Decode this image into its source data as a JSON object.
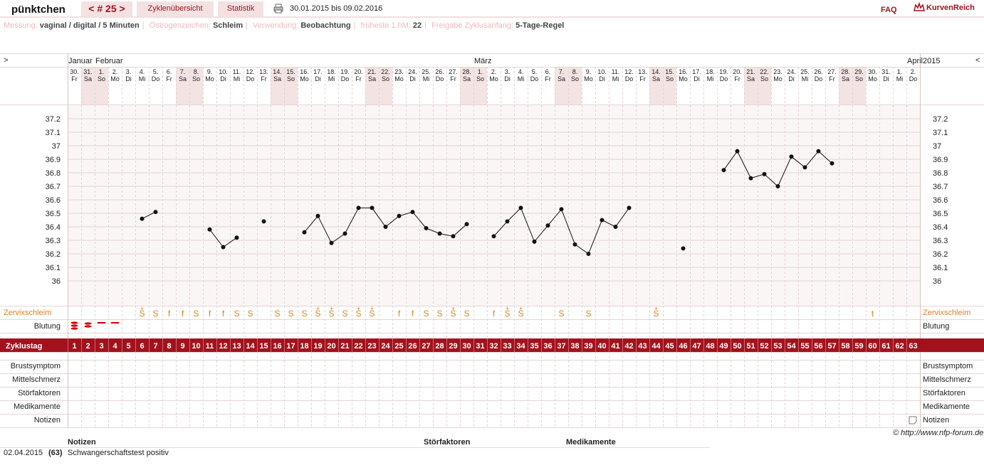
{
  "header": {
    "brand": "pünktchen",
    "cycle": "< # 25 >",
    "tabs": [
      "Zyklenübersicht",
      "Statistik"
    ],
    "date_range": "30.01.2015 bis 09.02.2016",
    "faq": "FAQ",
    "logo": "KurvenReich"
  },
  "settings": [
    {
      "label": "Messung:",
      "value": "vaginal / digital / 5 Minuten"
    },
    {
      "label": "Östrogenzeichen:",
      "value": "Schleim"
    },
    {
      "label": "Verwendung:",
      "value": "Beobachtung"
    },
    {
      "label": "früheste 1.hM:",
      "value": "22"
    },
    {
      "label": "Freigabe Zyklusanfang:",
      "value": "5-Tage-Regel"
    }
  ],
  "nav": {
    "prev": ">",
    "next": "<"
  },
  "colors": {
    "accent": "#a3121c",
    "weekend": "#f3e3e3",
    "mucus": "#e08020",
    "bleeding": "#cc0000",
    "grid": "#e2d2d2",
    "chartbg": "#fbf6f6"
  },
  "row_labels": {
    "zervix": "Zervixschleim",
    "blutung": "Blutung",
    "zyklustag": "Zyklustag",
    "brust": "Brustsymptom",
    "mittel": "Mittelschmerz",
    "stoer": "Störfaktoren",
    "medi": "Medikamente",
    "notizen": "Notizen"
  },
  "chart_data": {
    "type": "line",
    "month_labels": [
      {
        "label": "Januar",
        "day": 1
      },
      {
        "label": "Februar",
        "day": 3
      },
      {
        "label": "März",
        "day": 31
      },
      {
        "label": "April",
        "day": 63
      }
    ],
    "year": "2015",
    "dates": [
      "30.",
      "31.",
      "1.",
      "2.",
      "3.",
      "4.",
      "5.",
      "6.",
      "7.",
      "8.",
      "9.",
      "10.",
      "11.",
      "12.",
      "13.",
      "14.",
      "15.",
      "16.",
      "17.",
      "18.",
      "19.",
      "20.",
      "21.",
      "22.",
      "23.",
      "24.",
      "25.",
      "26.",
      "27.",
      "28.",
      "1.",
      "2.",
      "3.",
      "4.",
      "5.",
      "6.",
      "7.",
      "8.",
      "9.",
      "10.",
      "11.",
      "12.",
      "13.",
      "14.",
      "15.",
      "16.",
      "17.",
      "18.",
      "19.",
      "20.",
      "21.",
      "22.",
      "23.",
      "24.",
      "25.",
      "26.",
      "27.",
      "28.",
      "29.",
      "30.",
      "31.",
      "1.",
      "2."
    ],
    "weekdays": [
      "Fr",
      "Sa",
      "So",
      "Mo",
      "Di",
      "Mi",
      "Do",
      "Fr",
      "Sa",
      "So",
      "Mo",
      "Di",
      "Mi",
      "Do",
      "Fr",
      "Sa",
      "So",
      "Mo",
      "Di",
      "Mi",
      "Do",
      "Fr",
      "Sa",
      "So",
      "Mo",
      "Di",
      "Mi",
      "Do",
      "Fr",
      "Sa",
      "So",
      "Mo",
      "Di",
      "Mi",
      "Do",
      "Fr",
      "Sa",
      "So",
      "Mo",
      "Di",
      "Mi",
      "Do",
      "Fr",
      "Sa",
      "So",
      "Mo",
      "Di",
      "Mi",
      "Do",
      "Fr",
      "Sa",
      "So",
      "Mo",
      "Di",
      "Mi",
      "Do",
      "Fr",
      "Sa",
      "So",
      "Mo",
      "Di",
      "Mi",
      "Do"
    ],
    "yticks": [
      "37.2",
      "37.1",
      "37",
      "36.9",
      "36.8",
      "36.7",
      "36.6",
      "36.5",
      "36.4",
      "36.3",
      "36.2",
      "36.1",
      "36"
    ],
    "ylim": [
      36,
      37.2
    ],
    "xlabel": "Zyklustag",
    "temps": [
      null,
      null,
      null,
      null,
      null,
      36.46,
      36.51,
      null,
      null,
      null,
      36.38,
      36.25,
      36.32,
      null,
      36.44,
      null,
      null,
      36.36,
      36.48,
      36.28,
      36.35,
      36.54,
      36.54,
      36.4,
      36.48,
      36.51,
      36.39,
      36.35,
      36.33,
      36.42,
      null,
      36.33,
      36.44,
      36.54,
      36.29,
      36.41,
      36.53,
      36.27,
      36.2,
      36.45,
      36.4,
      36.54,
      null,
      null,
      null,
      36.24,
      null,
      null,
      36.82,
      36.96,
      36.76,
      36.79,
      36.7,
      36.92,
      36.84,
      36.96,
      36.87,
      null,
      null,
      null,
      null,
      null,
      null
    ],
    "segments": [
      [
        6,
        7
      ],
      [
        11,
        13
      ],
      [
        18,
        30
      ],
      [
        32,
        42
      ],
      [
        49,
        57
      ]
    ],
    "mucus": [
      "",
      "",
      "",
      "",
      "",
      "S+",
      "S",
      "f",
      "f",
      "S",
      "f",
      "f",
      "S",
      "S",
      "",
      "S",
      "S",
      "S",
      "S+",
      "S+",
      "S",
      "S+",
      "S+",
      "",
      "f",
      "f",
      "S",
      "S",
      "S+",
      "S",
      "",
      "f",
      "S+",
      "S+",
      "",
      "",
      "S",
      "",
      "S",
      "",
      "",
      "",
      "",
      "S+",
      "",
      "",
      "",
      "",
      "",
      "",
      "",
      "",
      "",
      "",
      "",
      "",
      "",
      "",
      "",
      "t",
      "",
      "",
      ""
    ],
    "bleeding": [
      3,
      2,
      1,
      1,
      0,
      0,
      0,
      0,
      0,
      0,
      0,
      0,
      0,
      0,
      0,
      0,
      0,
      0,
      0,
      0,
      0,
      0,
      0,
      0,
      0,
      0,
      0,
      0,
      0,
      0,
      0,
      0,
      0,
      0,
      0,
      0,
      0,
      0,
      0,
      0,
      0,
      0,
      0,
      0,
      0,
      0,
      0,
      0,
      0,
      0,
      0,
      0,
      0,
      0,
      0,
      0,
      0,
      0,
      0,
      0,
      0,
      0,
      0
    ]
  },
  "credit": "© http://www.nfp-forum.de",
  "notes": {
    "headers": [
      "Notizen",
      "Störfaktoren",
      "Medikamente"
    ],
    "rows": [
      {
        "date": "02.04.2015",
        "day": "(63)",
        "text": "Schwangerschaftstest positiv"
      }
    ]
  }
}
